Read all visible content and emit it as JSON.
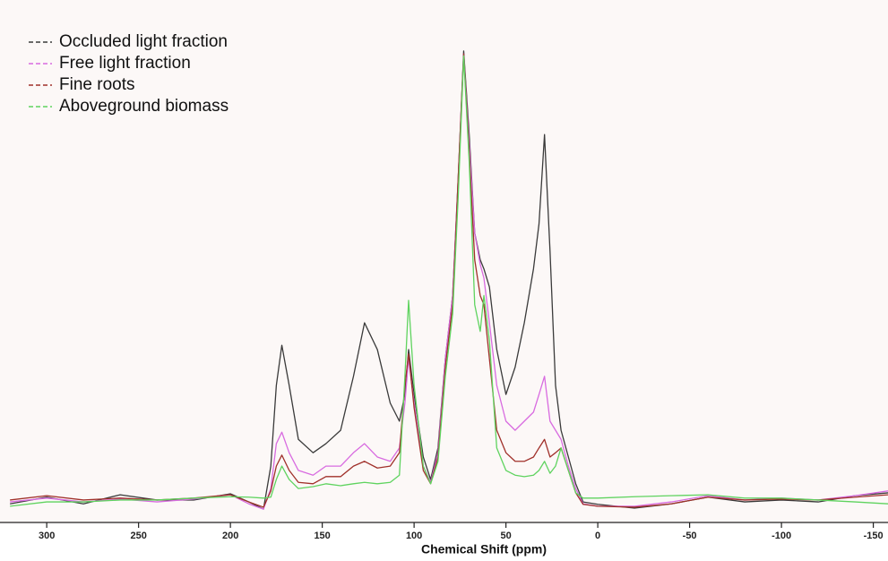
{
  "chart_data": {
    "type": "line",
    "x_label": "Chemical Shift (ppm)",
    "xlim": [
      323,
      -158
    ],
    "ylim": [
      0,
      100
    ],
    "xticks": [
      300,
      250,
      200,
      150,
      100,
      50,
      0,
      -50,
      -100,
      -150
    ],
    "x": [
      320,
      300,
      280,
      260,
      240,
      220,
      200,
      190,
      182,
      178,
      175,
      172,
      168,
      163,
      155,
      148,
      140,
      133,
      127,
      120,
      113,
      108,
      105,
      103,
      100,
      95,
      91,
      87,
      83,
      79,
      76,
      73,
      70,
      67,
      64,
      62,
      59,
      55,
      50,
      45,
      40,
      35,
      32,
      29,
      26,
      23,
      20,
      16,
      12,
      8,
      0,
      -20,
      -40,
      -60,
      -80,
      -100,
      -120,
      -140,
      -158
    ],
    "series": [
      {
        "name": "Occluded light fraction",
        "color": "#3a3a3a",
        "values": [
          3.9,
          5.3,
          3.9,
          5.8,
          4.7,
          4.7,
          6,
          4.3,
          2.8,
          11.8,
          28.7,
          37.1,
          28.7,
          17.4,
          14.6,
          16.5,
          19.3,
          30.6,
          41.8,
          36.2,
          25,
          21.2,
          26.8,
          36.2,
          26.8,
          13.7,
          9,
          15.6,
          34.3,
          47.5,
          71.9,
          98.7,
          81.2,
          60.6,
          55,
          53.1,
          49.3,
          36.2,
          26.8,
          32.5,
          41.8,
          53.1,
          62.5,
          81.2,
          56.8,
          28.7,
          19.3,
          13.7,
          8.1,
          4.3,
          3.8,
          3,
          3.9,
          5.3,
          4.3,
          4.7,
          4.3,
          5.6,
          6.2
        ]
      },
      {
        "name": "Free light fraction",
        "color": "#d86be0",
        "values": [
          4.3,
          5.1,
          4.3,
          4.9,
          4.3,
          4.9,
          5.8,
          3.9,
          2.8,
          7.1,
          16.5,
          18.9,
          14.6,
          10.9,
          9.9,
          11.8,
          11.8,
          14.6,
          16.5,
          13.7,
          12.8,
          15.6,
          25,
          34.3,
          25,
          11.8,
          8.4,
          14.6,
          34.3,
          47.5,
          71.9,
          98.1,
          79.4,
          60.6,
          54,
          51.2,
          41.8,
          28.7,
          21.2,
          19.3,
          21.2,
          23.1,
          26.8,
          30.6,
          21.2,
          19.3,
          17.4,
          11.8,
          7.1,
          3.9,
          3.4,
          3.4,
          4.3,
          5.6,
          4.7,
          5.1,
          4.7,
          5.6,
          6.6
        ]
      },
      {
        "name": "Fine roots",
        "color": "#a0302a",
        "values": [
          4.7,
          5.6,
          4.7,
          5.1,
          4.7,
          5.1,
          5.8,
          4.3,
          3.2,
          6.6,
          11.8,
          14.1,
          10.9,
          8.4,
          8.1,
          9.6,
          9.6,
          11.8,
          12.8,
          11.4,
          11.8,
          14.6,
          28.7,
          35.3,
          24,
          10.9,
          8.1,
          13.7,
          32.5,
          45.6,
          71.9,
          98.1,
          77.5,
          55,
          47.5,
          45.6,
          34.3,
          19.3,
          14.6,
          12.8,
          12.8,
          13.7,
          15.6,
          17.4,
          13.7,
          14.6,
          15.6,
          10.9,
          6.2,
          3.8,
          3.4,
          3.2,
          3.9,
          5.3,
          4.7,
          4.9,
          4.7,
          5.3,
          5.8
        ]
      },
      {
        "name": "Aboveground biomass",
        "color": "#5fd35f",
        "values": [
          3.4,
          4.3,
          4.3,
          4.7,
          4.7,
          5.1,
          5.4,
          5.3,
          5.1,
          5.3,
          9,
          11.8,
          9,
          7.1,
          7.5,
          8.1,
          7.7,
          8.1,
          8.4,
          8.1,
          8.4,
          9.9,
          30.6,
          46.5,
          28.7,
          11.8,
          8.1,
          12.8,
          30.6,
          43.7,
          68.1,
          97.7,
          75.6,
          45.6,
          40,
          47.5,
          38.1,
          15.6,
          10.9,
          9.9,
          9.6,
          9.9,
          10.9,
          12.8,
          10.3,
          11.8,
          15.6,
          10.9,
          6.2,
          5.1,
          5.1,
          5.4,
          5.6,
          5.8,
          5.1,
          5.1,
          4.7,
          4.3,
          3.9
        ]
      }
    ]
  }
}
